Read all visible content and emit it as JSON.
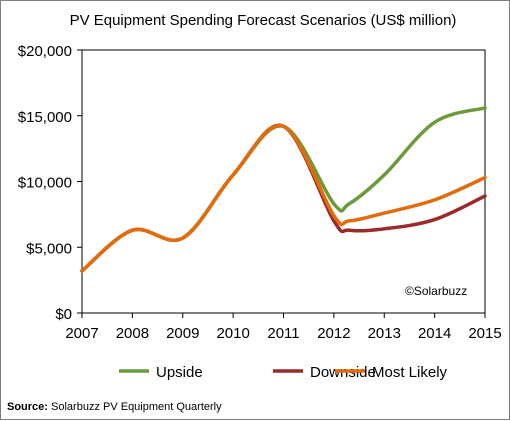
{
  "chart_data": {
    "type": "line",
    "title": "PV Equipment Spending Forecast Scenarios (US$ million)",
    "x": [
      2007,
      2008,
      2009,
      2010,
      2011,
      2012,
      2013,
      2014,
      2015
    ],
    "x_tick_labels": [
      "2007",
      "2008",
      "2009",
      "2010",
      "2011",
      "2012",
      "2013",
      "2014",
      "2015"
    ],
    "y_tick_values": [
      0,
      5000,
      10000,
      15000,
      20000
    ],
    "y_tick_labels": [
      "$0",
      "$5,000",
      "$10,000",
      "$15,000",
      "$20,000"
    ],
    "xlim": [
      2007,
      2015
    ],
    "ylim": [
      0,
      20000
    ],
    "grid": false,
    "legend_position": "bottom",
    "series": [
      {
        "name": "Upside",
        "color": "#6a9a3a",
        "points": [
          [
            2007,
            3200
          ],
          [
            2008,
            6300
          ],
          [
            2009,
            5700
          ],
          [
            2010,
            10500
          ],
          [
            2011,
            14200
          ],
          [
            2012,
            8300
          ],
          [
            2012.3,
            8300
          ],
          [
            2013,
            10500
          ],
          [
            2014,
            14500
          ],
          [
            2015,
            15600
          ]
        ]
      },
      {
        "name": "Downside",
        "color": "#9b2a2a",
        "points": [
          [
            2007,
            3200
          ],
          [
            2008,
            6300
          ],
          [
            2009,
            5700
          ],
          [
            2010,
            10500
          ],
          [
            2011,
            14200
          ],
          [
            2012,
            7000
          ],
          [
            2012.3,
            6300
          ],
          [
            2013,
            6400
          ],
          [
            2014,
            7100
          ],
          [
            2015,
            8900
          ]
        ]
      },
      {
        "name": "Most Likely",
        "color": "#e36c0a",
        "points": [
          [
            2007,
            3200
          ],
          [
            2008,
            6300
          ],
          [
            2009,
            5700
          ],
          [
            2010,
            10500
          ],
          [
            2011,
            14200
          ],
          [
            2012,
            7400
          ],
          [
            2012.3,
            7000
          ],
          [
            2013,
            7600
          ],
          [
            2014,
            8600
          ],
          [
            2015,
            10300
          ]
        ]
      }
    ],
    "annotation": "©Solarbuzz"
  },
  "source": {
    "label": "Source:",
    "text": "Solarbuzz PV Equipment Quarterly"
  }
}
